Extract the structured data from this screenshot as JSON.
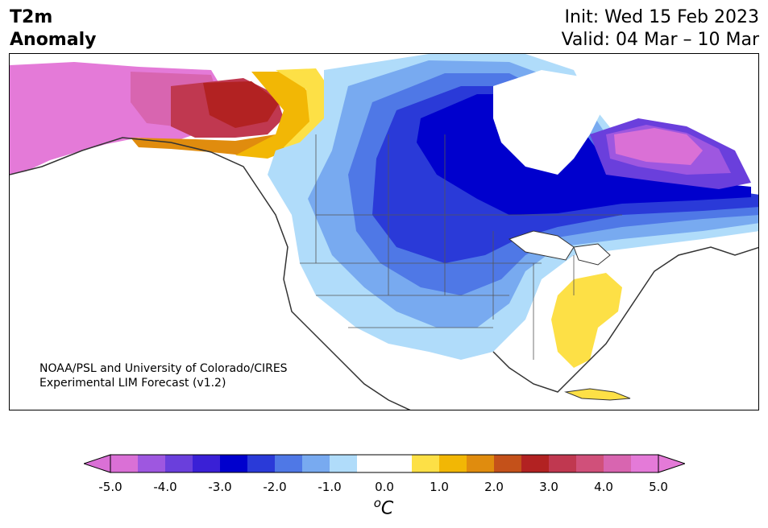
{
  "header": {
    "title_line1": "T2m",
    "title_line2": "Anomaly",
    "init_text": "Init: Wed 15 Feb 2023",
    "valid_text": "Valid: 04 Mar – 10 Mar"
  },
  "map": {
    "region": "North America",
    "credit_line1": "NOAA/PSL and University of Colorado/CIRES",
    "credit_line2": "Experimental LIM Forecast (v1.2)"
  },
  "colorbar": {
    "unit_base": "C",
    "unit_sup": "o",
    "tick_labels": [
      "-5.0",
      "-4.0",
      "-3.0",
      "-2.0",
      "-1.0",
      "0.0",
      "1.0",
      "2.0",
      "3.0",
      "4.0",
      "5.0"
    ],
    "colors": [
      "#da70d6",
      "#9e57e0",
      "#6a3fdc",
      "#3a20d6",
      "#0000cd",
      "#2a3ad8",
      "#4f78e6",
      "#78aaf0",
      "#b0dcfa",
      "#ffffff",
      "#ffffff",
      "#fde046",
      "#f2b705",
      "#e08c0e",
      "#c4511a",
      "#b22222",
      "#c03850",
      "#d0507a",
      "#d865b0",
      "#e47ad8"
    ],
    "extend_low_color": "#da70d6",
    "extend_high_color": "#e47ad8"
  }
}
